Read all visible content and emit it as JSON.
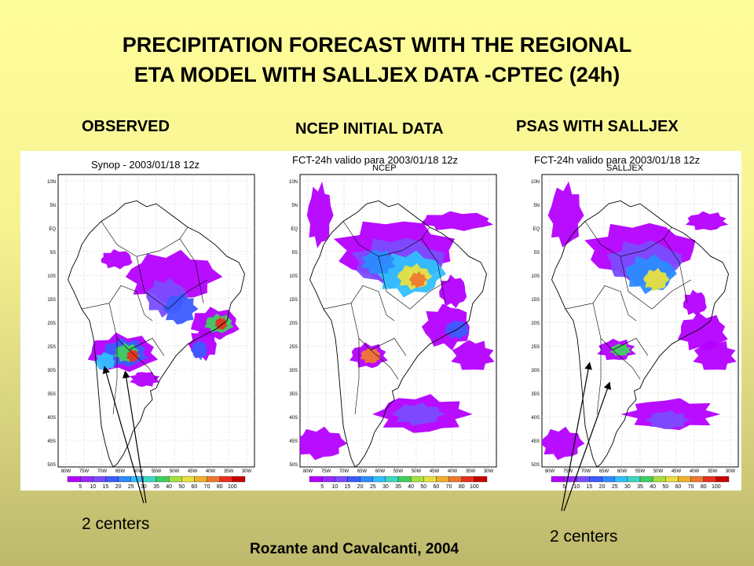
{
  "title_line1": "PRECIPITATION FORECAST WITH THE REGIONAL",
  "title_line2": "ETA MODEL WITH SALLJEX DATA -CPTEC (24h)",
  "columns": {
    "observed": "OBSERVED",
    "ncep": "NCEP  INITIAL DATA",
    "psas": "PSAS WITH  SALLJEX"
  },
  "panels": {
    "observed": {
      "header": "Synop - 2003/01/18 12z",
      "sub": ""
    },
    "ncep": {
      "header": "FCT-24h valido para 2003/01/18 12z",
      "sub": "NCEP"
    },
    "psas": {
      "header": "FCT-24h valido para 2003/01/18 12z",
      "sub": "SALLJEX"
    }
  },
  "lat_ticks": [
    "10N",
    "5N",
    "EQ",
    "5S",
    "10S",
    "15S",
    "20S",
    "25S",
    "30S",
    "35S",
    "40S",
    "45S",
    "50S"
  ],
  "lon_ticks": [
    "80W",
    "75W",
    "70W",
    "65W",
    "60W",
    "55W",
    "50W",
    "45W",
    "40W",
    "35W",
    "30W"
  ],
  "colorbar": {
    "labels": [
      "5",
      "10",
      "15",
      "20",
      "25",
      "30",
      "35",
      "40",
      "50",
      "60",
      "70",
      "80",
      "100"
    ],
    "colors": [
      "#b400ff",
      "#9a28ff",
      "#7a4cff",
      "#3c5cff",
      "#2c8cff",
      "#30c0ff",
      "#3cd8c0",
      "#40d060",
      "#a8e040",
      "#e8e040",
      "#f0b030",
      "#f07830",
      "#e83020",
      "#c80000"
    ]
  },
  "annotations": {
    "left_centers": "2 centers",
    "right_centers": "2 centers"
  },
  "citation": "Rozante and Cavalcanti, 2004"
}
